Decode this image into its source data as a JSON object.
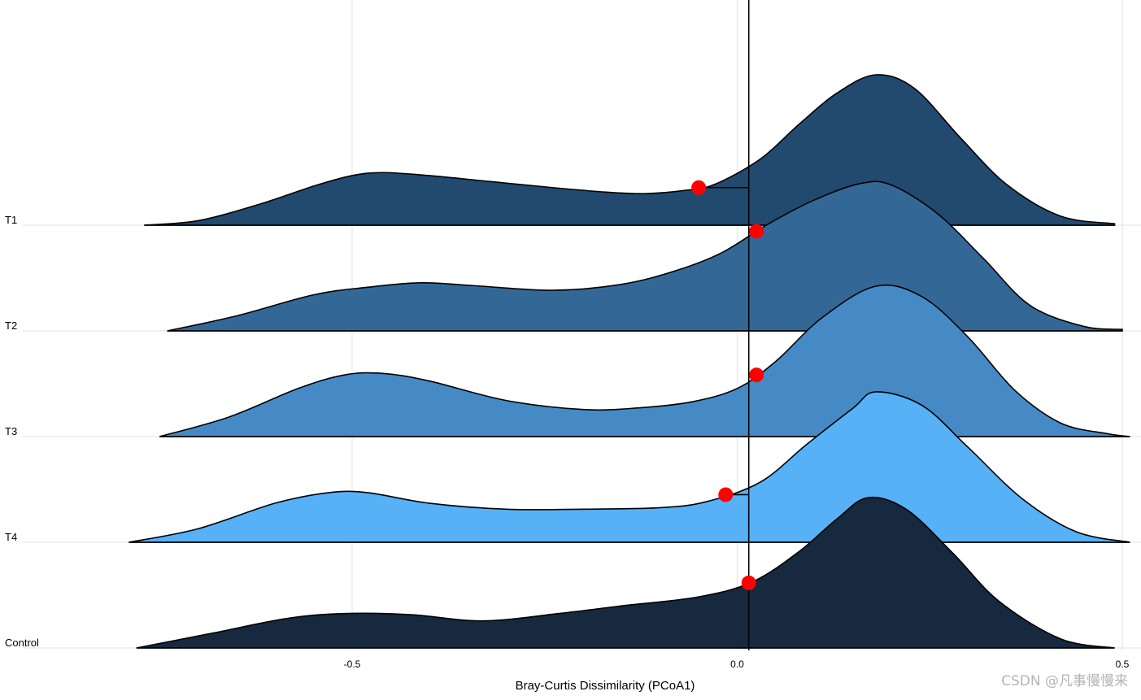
{
  "chart_data": {
    "type": "ridgeline",
    "title": "",
    "xlabel": "Bray-Curtis Dissimilarity (PCoA1)",
    "ylabel": "",
    "xlim": [
      -0.95,
      0.52
    ],
    "x_ticks": [
      {
        "value": -0.5,
        "label": "-0.5"
      },
      {
        "value": 0.0,
        "label": "0.0"
      },
      {
        "value": 0.5,
        "label": "0.5"
      }
    ],
    "reference_line_x": 0.015,
    "grid": true,
    "legend": "none",
    "series": [
      {
        "name": "T1",
        "color": "#214a6e",
        "point_x": -0.05,
        "density": [
          [
            -0.77,
            0.0
          ],
          [
            -0.7,
            0.03
          ],
          [
            -0.62,
            0.14
          ],
          [
            -0.55,
            0.26
          ],
          [
            -0.5,
            0.33
          ],
          [
            -0.46,
            0.35
          ],
          [
            -0.4,
            0.33
          ],
          [
            -0.32,
            0.29
          ],
          [
            -0.24,
            0.25
          ],
          [
            -0.17,
            0.22
          ],
          [
            -0.12,
            0.21
          ],
          [
            -0.07,
            0.23
          ],
          [
            -0.03,
            0.27
          ],
          [
            0.03,
            0.44
          ],
          [
            0.08,
            0.67
          ],
          [
            0.13,
            0.88
          ],
          [
            0.18,
            1.0
          ],
          [
            0.23,
            0.91
          ],
          [
            0.29,
            0.58
          ],
          [
            0.35,
            0.27
          ],
          [
            0.42,
            0.06
          ],
          [
            0.49,
            0.01
          ]
        ]
      },
      {
        "name": "T2",
        "color": "#336896",
        "point_x": 0.025,
        "density": [
          [
            -0.74,
            0.0
          ],
          [
            -0.65,
            0.1
          ],
          [
            -0.55,
            0.24
          ],
          [
            -0.48,
            0.29
          ],
          [
            -0.41,
            0.32
          ],
          [
            -0.34,
            0.3
          ],
          [
            -0.24,
            0.27
          ],
          [
            -0.15,
            0.31
          ],
          [
            -0.08,
            0.4
          ],
          [
            -0.02,
            0.52
          ],
          [
            0.04,
            0.71
          ],
          [
            0.1,
            0.87
          ],
          [
            0.16,
            0.98
          ],
          [
            0.2,
            0.97
          ],
          [
            0.26,
            0.78
          ],
          [
            0.32,
            0.48
          ],
          [
            0.38,
            0.17
          ],
          [
            0.45,
            0.03
          ],
          [
            0.5,
            0.01
          ]
        ]
      },
      {
        "name": "T3",
        "color": "#458ac5",
        "point_x": 0.025,
        "density": [
          [
            -0.75,
            0.0
          ],
          [
            -0.66,
            0.13
          ],
          [
            -0.57,
            0.32
          ],
          [
            -0.51,
            0.41
          ],
          [
            -0.46,
            0.42
          ],
          [
            -0.4,
            0.37
          ],
          [
            -0.3,
            0.24
          ],
          [
            -0.2,
            0.18
          ],
          [
            -0.13,
            0.19
          ],
          [
            -0.06,
            0.23
          ],
          [
            0.0,
            0.32
          ],
          [
            0.05,
            0.5
          ],
          [
            0.11,
            0.79
          ],
          [
            0.18,
            1.0
          ],
          [
            0.24,
            0.93
          ],
          [
            0.3,
            0.66
          ],
          [
            0.36,
            0.31
          ],
          [
            0.42,
            0.09
          ],
          [
            0.48,
            0.02
          ],
          [
            0.51,
            0.0
          ]
        ]
      },
      {
        "name": "T4",
        "color": "#56b1f7",
        "point_x": -0.015,
        "density": [
          [
            -0.79,
            0.0
          ],
          [
            -0.7,
            0.09
          ],
          [
            -0.6,
            0.26
          ],
          [
            -0.53,
            0.33
          ],
          [
            -0.48,
            0.33
          ],
          [
            -0.4,
            0.26
          ],
          [
            -0.3,
            0.22
          ],
          [
            -0.2,
            0.22
          ],
          [
            -0.1,
            0.23
          ],
          [
            -0.04,
            0.27
          ],
          [
            0.03,
            0.4
          ],
          [
            0.09,
            0.65
          ],
          [
            0.15,
            0.89
          ],
          [
            0.18,
            1.0
          ],
          [
            0.24,
            0.91
          ],
          [
            0.3,
            0.63
          ],
          [
            0.37,
            0.29
          ],
          [
            0.44,
            0.07
          ],
          [
            0.51,
            0.0
          ]
        ]
      },
      {
        "name": "Control",
        "color": "#16293f",
        "point_x": 0.015,
        "density": [
          [
            -0.78,
            0.0
          ],
          [
            -0.68,
            0.1
          ],
          [
            -0.58,
            0.2
          ],
          [
            -0.5,
            0.23
          ],
          [
            -0.42,
            0.22
          ],
          [
            -0.33,
            0.18
          ],
          [
            -0.23,
            0.23
          ],
          [
            -0.15,
            0.28
          ],
          [
            -0.05,
            0.34
          ],
          [
            0.02,
            0.44
          ],
          [
            0.08,
            0.64
          ],
          [
            0.13,
            0.86
          ],
          [
            0.17,
            1.0
          ],
          [
            0.22,
            0.92
          ],
          [
            0.28,
            0.63
          ],
          [
            0.34,
            0.31
          ],
          [
            0.42,
            0.06
          ],
          [
            0.49,
            0.0
          ]
        ]
      }
    ]
  },
  "watermark": "CSDN @凡事慢慢来"
}
